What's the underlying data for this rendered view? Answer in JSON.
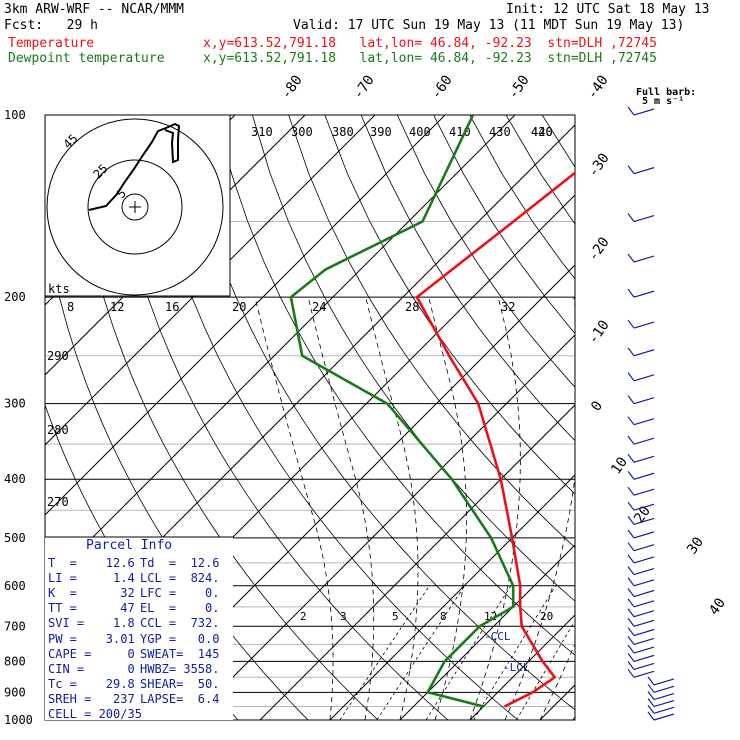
{
  "header": {
    "model": "3km ARW-WRF -- NCAR/MMM",
    "init": "Init: 12 UTC Sat 18 May 13",
    "fcst": "Fcst:   29 h",
    "valid": "Valid: 17 UTC Sun 19 May 13 (11 MDT Sun 19 May 13)",
    "temp_label": "Temperature",
    "dew_label": "Dewpoint temperature",
    "temp_loc": "x,y=613.52,791.18   lat,lon= 46.84, -92.23  stn=DLH ,72745",
    "dew_loc": "x,y=613.52,791.18   lat,lon= 46.84, -92.23  stn=DLH ,72745"
  },
  "colors": {
    "temperature": "#e8131a",
    "dewpoint": "#1a7a1a",
    "parcel_info": "#1020a0",
    "wind_barbs": "#1020a0"
  },
  "chart_data": {
    "type": "skew-t log-p sounding",
    "pressure_levels_hpa": [
      "100",
      "200",
      "300",
      "400",
      "500",
      "600",
      "700",
      "800",
      "900",
      "1000"
    ],
    "isotherm_labels_c": [
      "-80",
      "-70",
      "-60",
      "-50",
      "-40",
      "-30",
      "-20",
      "-10",
      "0",
      "10",
      "20",
      "30",
      "40"
    ],
    "dry_adiabat_labels_k": [
      "310",
      "300",
      "290",
      "280",
      "270"
    ],
    "moist_adiabat_labels_k": [
      "380",
      "390",
      "400",
      "410",
      "420",
      "430",
      "440"
    ],
    "mixing_ratio_labels": [
      "2",
      "3",
      "5",
      "8",
      "12",
      "20"
    ],
    "series": [
      {
        "name": "Temperature",
        "points": [
          [
            100,
            -51
          ],
          [
            150,
            -55
          ],
          [
            200,
            -58
          ],
          [
            250,
            -45
          ],
          [
            300,
            -34
          ],
          [
            400,
            -20
          ],
          [
            500,
            -10
          ],
          [
            600,
            -2
          ],
          [
            650,
            1
          ],
          [
            700,
            4
          ],
          [
            800,
            12
          ],
          [
            850,
            16
          ],
          [
            900,
            15
          ],
          [
            950,
            13
          ]
        ]
      },
      {
        "name": "Dewpoint temperature",
        "points": [
          [
            100,
            -76
          ],
          [
            150,
            -68
          ],
          [
            180,
            -75
          ],
          [
            200,
            -76
          ],
          [
            250,
            -66
          ],
          [
            300,
            -47
          ],
          [
            400,
            -27
          ],
          [
            500,
            -13
          ],
          [
            600,
            -3
          ],
          [
            650,
            0
          ],
          [
            700,
            -2
          ],
          [
            800,
            -2
          ],
          [
            900,
            0
          ],
          [
            950,
            10
          ]
        ]
      }
    ],
    "hodograph": {
      "ring_labels": [
        "45",
        "25",
        "5"
      ]
    },
    "small_axis": {
      "label": "kts",
      "ticks": [
        "8",
        "12",
        "16",
        "20",
        "24",
        "28",
        "32"
      ]
    },
    "ccl_label": "-CCL",
    "lcl_label": "-LCL",
    "barb_key": {
      "title": "Full barb:",
      "value": "5 m s⁻¹"
    }
  },
  "parcel_info": {
    "title": "Parcel Info",
    "rows": [
      [
        "T  =    12.6",
        "Td  =  12.6"
      ],
      [
        "LI =     1.4",
        "LCL =  824."
      ],
      [
        "K  =      32",
        "LFC =    0."
      ],
      [
        "TT =      47",
        "EL  =    0."
      ],
      [
        "SVI =    1.8",
        "CCL =  732."
      ],
      [
        "PW =    3.01",
        "YGP =   0.0"
      ],
      [
        "CAPE =     0",
        "SWEAT=  145"
      ],
      [
        "CIN =      0",
        "HWBZ= 3558."
      ],
      [
        "Tc =    29.8",
        "SHEAR=  50."
      ],
      [
        "SREH =   237",
        "LAPSE=  6.4"
      ],
      [
        "CELL = 200/35",
        ""
      ]
    ]
  }
}
